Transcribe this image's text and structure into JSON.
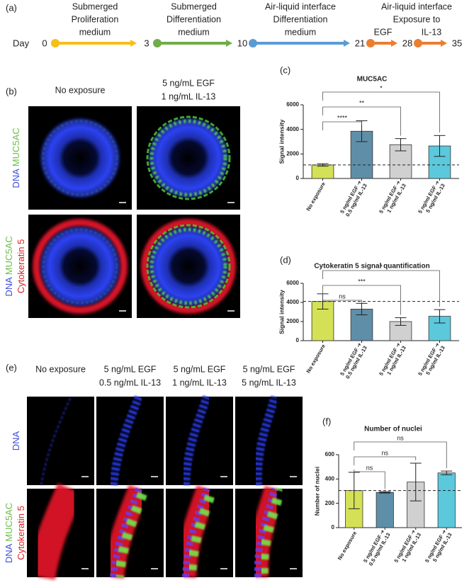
{
  "timeline": {
    "panel": "(a)",
    "day_label": "Day",
    "days": [
      "0",
      "3",
      "10",
      "21",
      "28",
      "35"
    ],
    "stages": [
      {
        "label": [
          "Submerged",
          "Proliferation",
          "medium"
        ],
        "color": "#f5c018"
      },
      {
        "label": [
          "Submerged",
          "Differentiation",
          "medium"
        ],
        "color": "#70ad47"
      },
      {
        "label": [
          "Air-liquid interface",
          "Differentiation",
          "medium"
        ],
        "color": "#5b9bd5"
      },
      {
        "label": [
          "EGF"
        ],
        "color": "#ed7d31"
      },
      {
        "label": [
          "IL-13"
        ],
        "color": "#ed7d31"
      }
    ],
    "group_label": [
      "Air-liquid interface",
      "Exposure to"
    ]
  },
  "panel_b": {
    "panel": "(b)",
    "columns": [
      [
        "No exposure"
      ],
      [
        "5 ng/mL EGF",
        "1 ng/mL IL-13"
      ]
    ],
    "rows": [
      [
        {
          "text": "DNA",
          "color": "#3d4fd8"
        },
        {
          "text": "MUC5AC",
          "color": "#6cc04a"
        }
      ],
      [
        {
          "text": "DNA",
          "color": "#3d4fd8"
        },
        {
          "text": "MUC5AC",
          "color": "#6cc04a"
        },
        {
          "text": "Cytokeratin 5",
          "color": "#e02020"
        }
      ]
    ]
  },
  "panel_e": {
    "panel": "(e)",
    "columns": [
      [
        "No exposure"
      ],
      [
        "5 ng/mL EGF",
        "0.5 ng/mL IL-13"
      ],
      [
        "5 ng/mL EGF",
        "1 ng/mL IL-13"
      ],
      [
        "5 ng/mL EGF",
        "5 ng/mL IL-13"
      ]
    ],
    "rows": [
      [
        {
          "text": "DNA",
          "color": "#3d4fd8"
        }
      ],
      [
        {
          "text": "DNA",
          "color": "#3d4fd8"
        },
        {
          "text": "MUC5AC",
          "color": "#6cc04a"
        },
        {
          "text": "Cytokeratin 5",
          "color": "#e02020"
        }
      ]
    ]
  },
  "chart_data": [
    {
      "type": "bar",
      "panel": "(c)",
      "title": "MUC5AC",
      "ylabel": "Signal intensity",
      "categories": [
        [
          "No exposure"
        ],
        [
          "5 ng/ml EGF ➔",
          "0.5 ng/ml IL-13"
        ],
        [
          "5 ng/ml EGF ➔",
          "1 ng/ml IL-13"
        ],
        [
          "5 ng/ml EGF ➔",
          "5 ng/ml IL-13"
        ]
      ],
      "values": [
        1100,
        3850,
        2750,
        2650
      ],
      "errors": [
        100,
        850,
        500,
        850
      ],
      "colors": [
        "#d4e157",
        "#5f8ea8",
        "#d0d0d0",
        "#5cc8dc"
      ],
      "ylim": [
        0,
        6000
      ],
      "yticks": [
        0,
        2000,
        4000,
        6000
      ],
      "reference_line": 1100,
      "significance": [
        "****",
        "**",
        "*"
      ]
    },
    {
      "type": "bar",
      "panel": "(d)",
      "title": "Cytokeratin 5 signal quantification",
      "ylabel": "Signal intensity",
      "categories": [
        [
          "No exposure"
        ],
        [
          "5 ng/ml EGF ➔",
          "0.5 ng/ml IL-13"
        ],
        [
          "5 ng/ml EGF ➔",
          "1 ng/ml IL-13"
        ],
        [
          "5 ng/ml EGF ➔",
          "5 ng/ml IL-13"
        ]
      ],
      "values": [
        4100,
        3300,
        2000,
        2550
      ],
      "errors": [
        800,
        600,
        400,
        700
      ],
      "colors": [
        "#d4e157",
        "#5f8ea8",
        "#d0d0d0",
        "#5cc8dc"
      ],
      "ylim": [
        0,
        6000
      ],
      "yticks": [
        0,
        2000,
        4000,
        6000
      ],
      "reference_line": 4100,
      "significance": [
        "ns",
        "***",
        "*"
      ]
    },
    {
      "type": "bar",
      "panel": "(f)",
      "title": "Number of nuclei",
      "ylabel": "Number of nuclei",
      "categories": [
        [
          "No exposure"
        ],
        [
          "5 ng/ml EGF ➔",
          "0.5 ng/ml IL-13"
        ],
        [
          "5 ng/ml EGF ➔",
          "1 ng/ml IL-13"
        ],
        [
          "5 ng/ml EGF ➔",
          "5 ng/ml IL-13"
        ]
      ],
      "values": [
        305,
        290,
        375,
        450
      ],
      "errors": [
        150,
        5,
        155,
        15
      ],
      "colors": [
        "#d4e157",
        "#5f8ea8",
        "#d0d0d0",
        "#5cc8dc"
      ],
      "ylim": [
        0,
        600
      ],
      "yticks": [
        0,
        200,
        400,
        600
      ],
      "reference_line": 305,
      "significance": [
        "ns",
        "ns",
        "ns"
      ]
    }
  ]
}
